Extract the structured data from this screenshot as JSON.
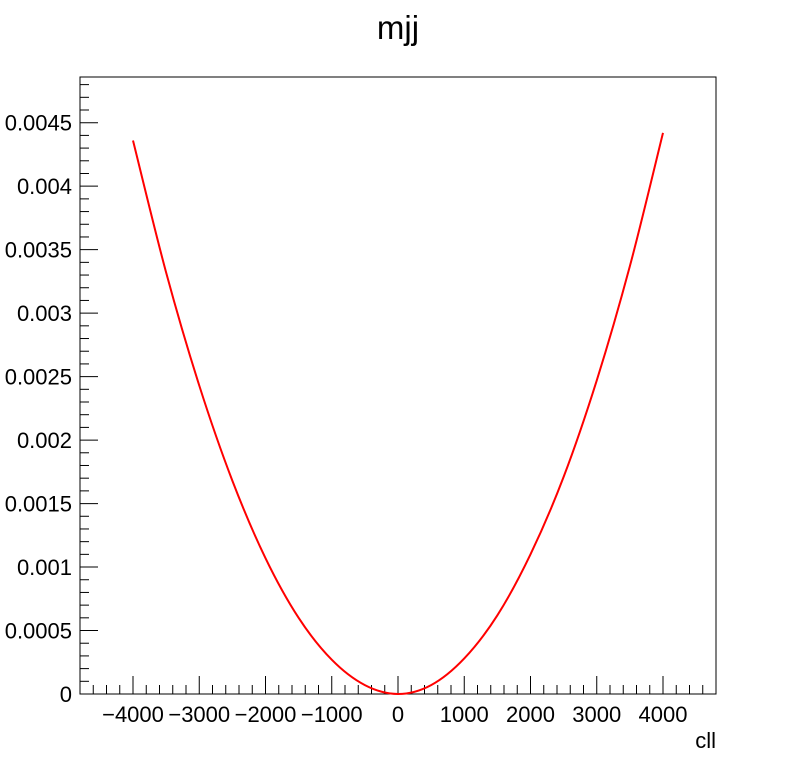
{
  "chart_data": {
    "type": "line",
    "title": "mjj",
    "xlabel": "cll",
    "ylabel": "",
    "xlim": [
      -4800,
      4800
    ],
    "ylim": [
      0,
      0.00486
    ],
    "x_ticks": [
      -4000,
      -3000,
      -2000,
      -1000,
      0,
      1000,
      2000,
      3000,
      4000
    ],
    "x_tick_labels": [
      "−4000",
      "−3000",
      "−2000",
      "−1000",
      "0",
      "1000",
      "2000",
      "3000",
      "4000"
    ],
    "y_ticks": [
      0,
      0.0005,
      0.001,
      0.0015,
      0.002,
      0.0025,
      0.003,
      0.0035,
      0.004,
      0.0045
    ],
    "y_tick_labels": [
      "0",
      "0.0005",
      "0.001",
      "0.0015",
      "0.002",
      "0.0025",
      "0.003",
      "0.0035",
      "0.004",
      "0.0045"
    ],
    "grid": false,
    "series": [
      {
        "color": "#ff0000",
        "x": [
          -4000,
          -3500,
          -3000,
          -2500,
          -2000,
          -1500,
          -1000,
          -500,
          0,
          500,
          1000,
          1500,
          2000,
          2500,
          3000,
          3500,
          4000
        ],
        "y": [
          0.00436,
          0.00332,
          0.00243,
          0.00168,
          0.00107,
          0.0006,
          0.00027,
          7e-05,
          0.0,
          7e-05,
          0.00028,
          0.00062,
          0.0011,
          0.00171,
          0.00247,
          0.00337,
          0.00442
        ]
      }
    ]
  }
}
